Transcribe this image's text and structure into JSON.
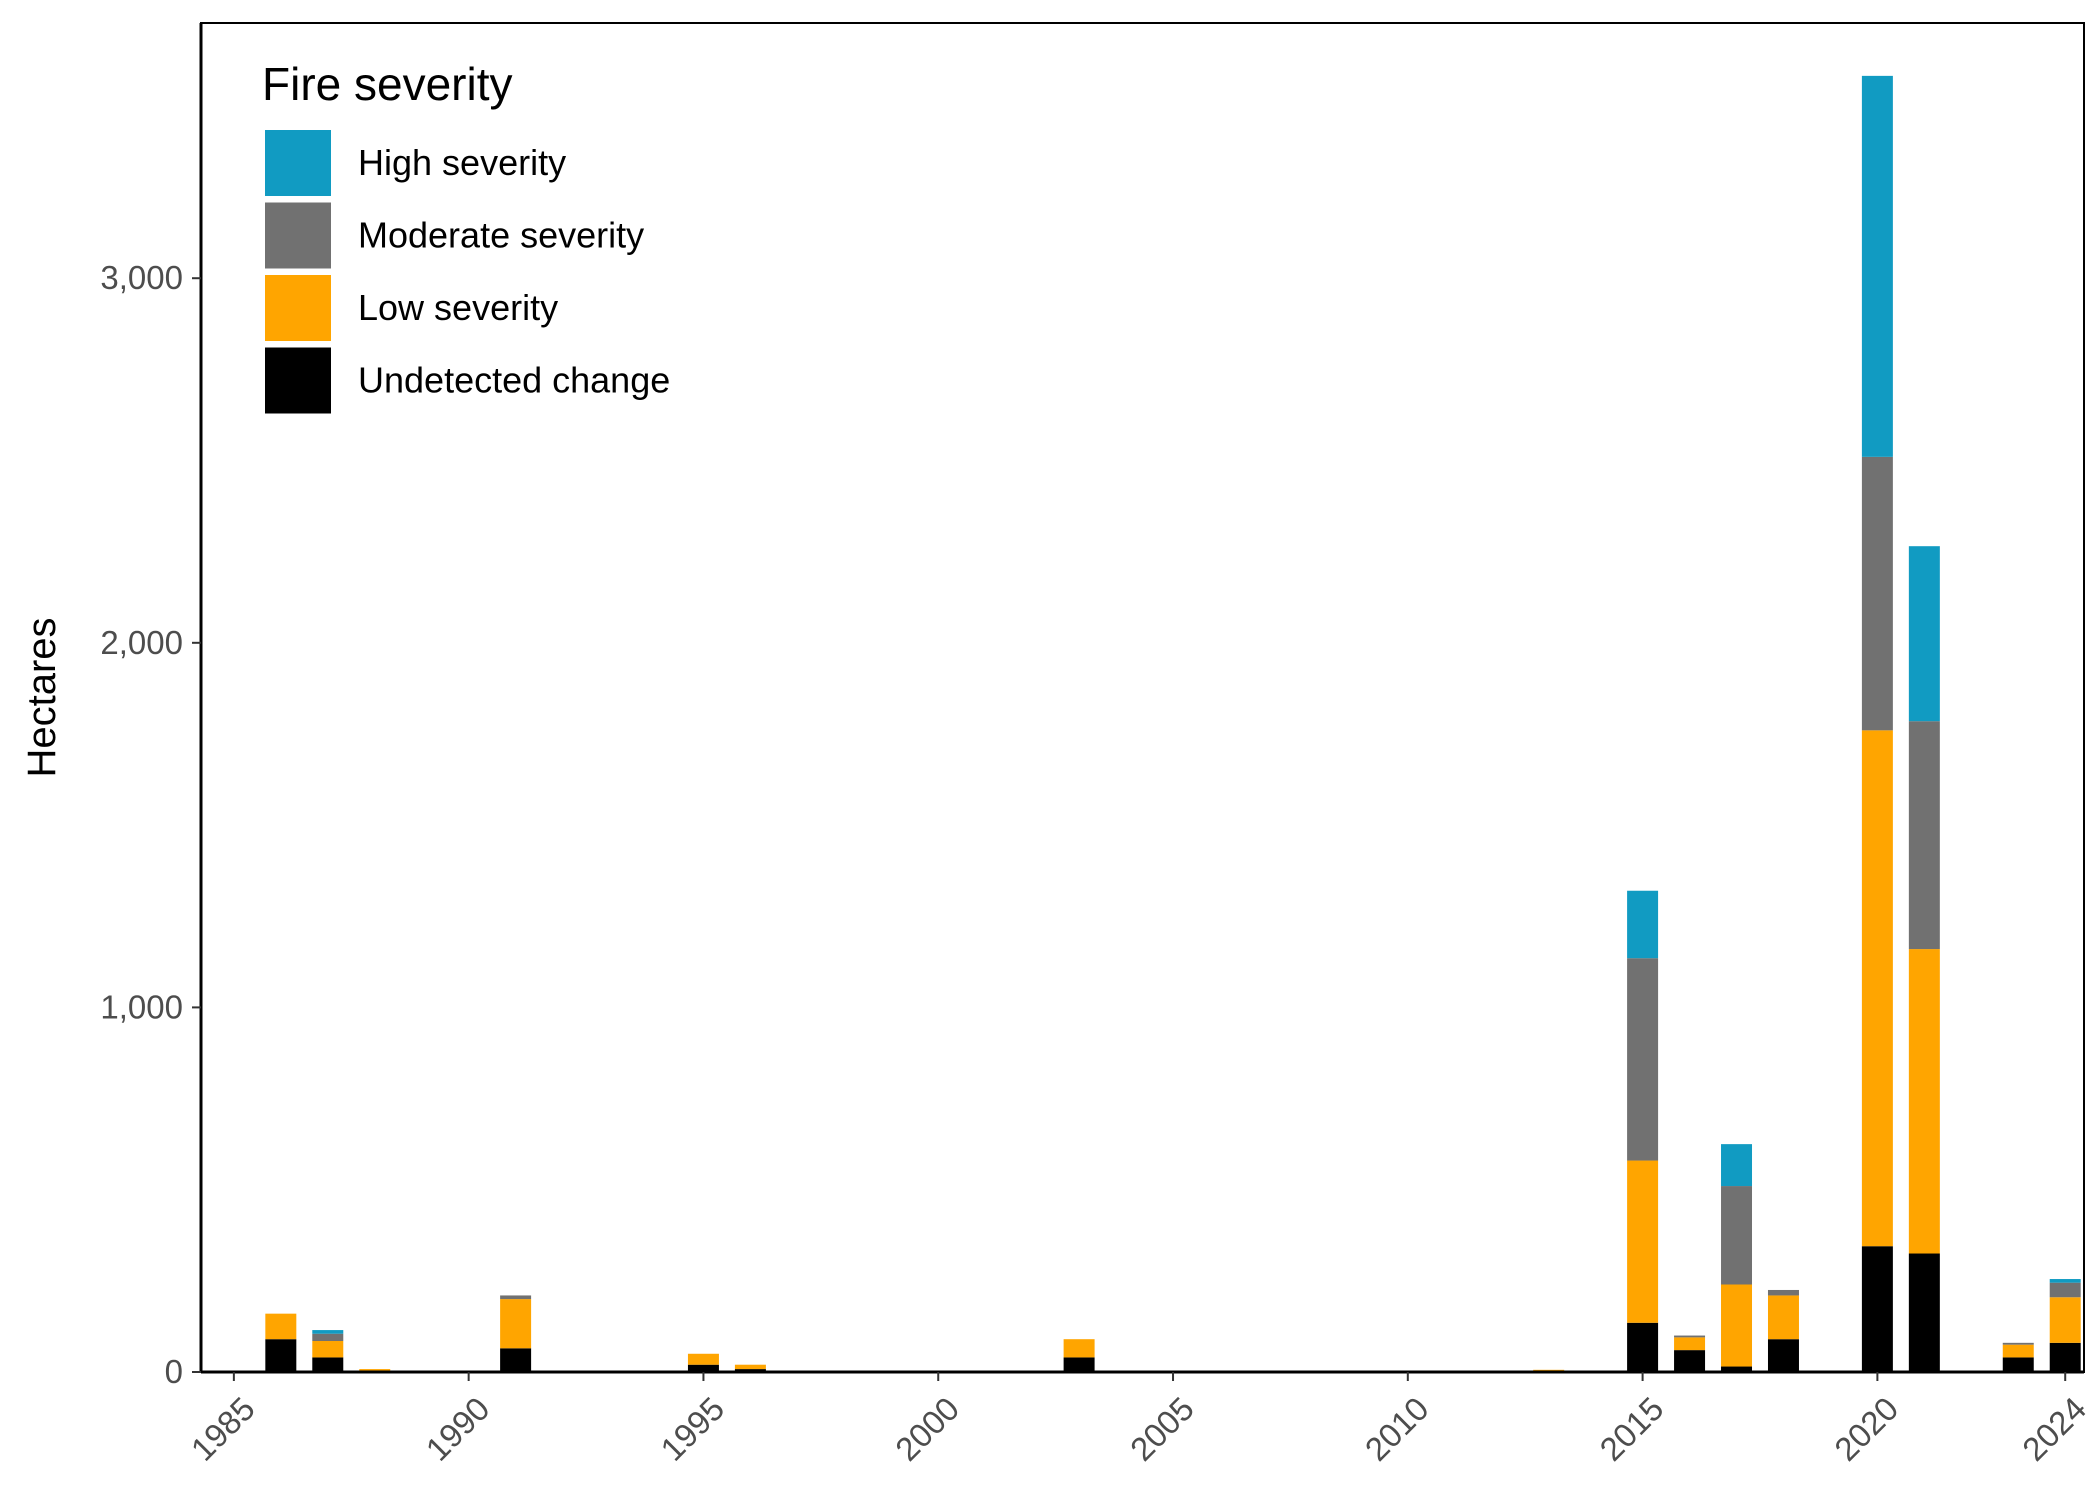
{
  "chart_data": {
    "type": "bar",
    "stacked": true,
    "title": "",
    "xlabel": "",
    "ylabel": "Hectares",
    "xlim": [
      1984.3,
      2024.4
    ],
    "ylim": [
      0,
      3700
    ],
    "x_ticks": [
      "1985",
      "1990",
      "1995",
      "2000",
      "2005",
      "2010",
      "2015",
      "2020",
      "2024"
    ],
    "y_ticks": [
      "0",
      "1,000",
      "2,000",
      "3,000"
    ],
    "grid": false,
    "legend": {
      "title": "Fire severity",
      "position": "top-left"
    },
    "x": [
      1986,
      1987,
      1988,
      1991,
      1995,
      1996,
      2003,
      2013,
      2015,
      2016,
      2017,
      2018,
      2020,
      2021,
      2023,
      2024
    ],
    "series": [
      {
        "name": "Undetected change",
        "color": "#000000",
        "values": [
          90,
          40,
          0,
          65,
          20,
          8,
          40,
          0,
          135,
          60,
          15,
          90,
          345,
          325,
          40,
          80
        ]
      },
      {
        "name": "Low severity",
        "color": "#FFA500",
        "values": [
          70,
          45,
          8,
          135,
          30,
          12,
          50,
          6,
          445,
          35,
          225,
          120,
          1415,
          835,
          35,
          125
        ]
      },
      {
        "name": "Moderate severity",
        "color": "#717171",
        "values": [
          0,
          20,
          0,
          10,
          0,
          0,
          0,
          0,
          555,
          5,
          270,
          15,
          750,
          625,
          5,
          40
        ]
      },
      {
        "name": "High severity",
        "color": "#119BC2",
        "values": [
          0,
          10,
          0,
          0,
          0,
          0,
          0,
          0,
          185,
          0,
          115,
          0,
          1045,
          480,
          0,
          10
        ]
      }
    ]
  }
}
